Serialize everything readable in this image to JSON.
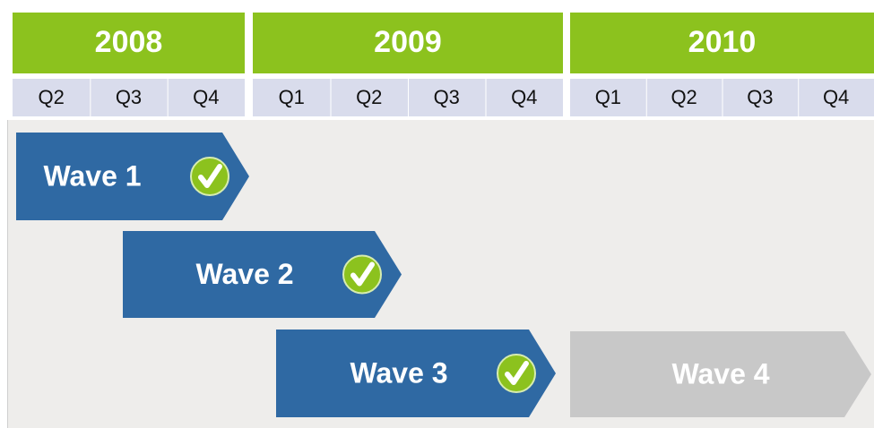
{
  "years": [
    {
      "label": "2008",
      "quarters": [
        "Q2",
        "Q3",
        "Q4"
      ]
    },
    {
      "label": "2009",
      "quarters": [
        "Q1",
        "Q2",
        "Q3",
        "Q4"
      ]
    },
    {
      "label": "2010",
      "quarters": [
        "Q1",
        "Q2",
        "Q3",
        "Q4"
      ]
    }
  ],
  "waves": [
    {
      "label": "Wave 1",
      "done": true
    },
    {
      "label": "Wave 2",
      "done": true
    },
    {
      "label": "Wave 3",
      "done": true
    },
    {
      "label": "Wave 4",
      "done": false
    }
  ]
}
